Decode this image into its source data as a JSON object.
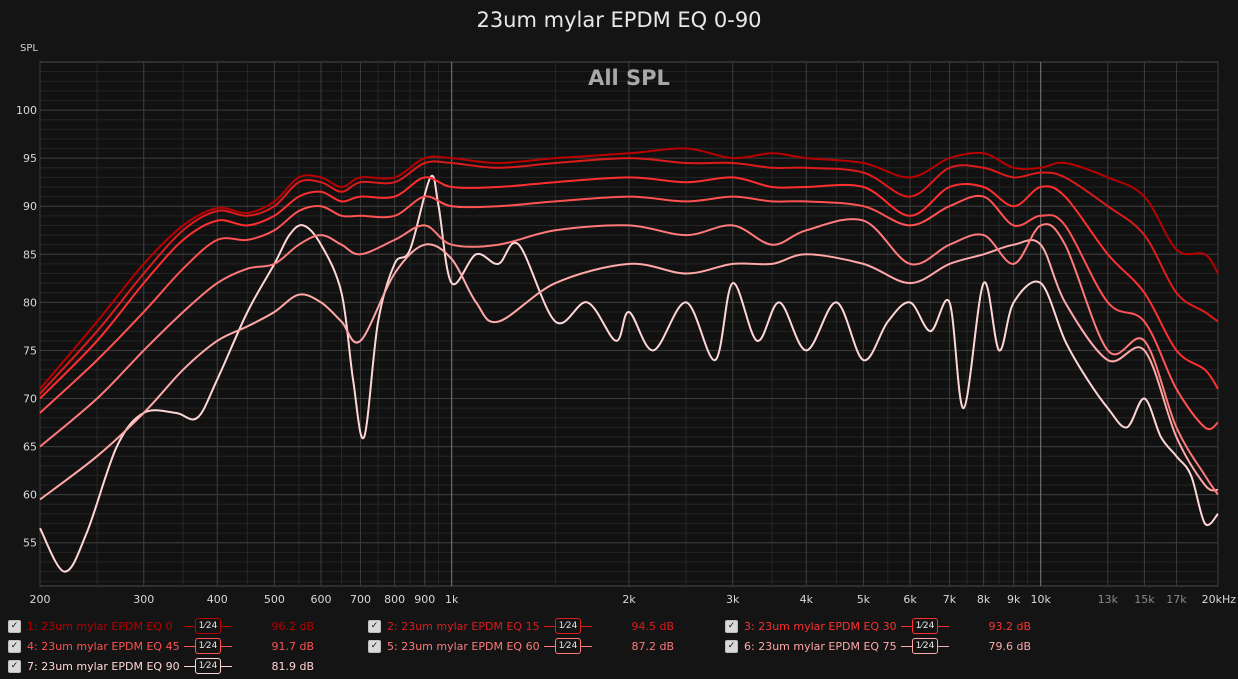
{
  "title": "23um mylar EPDM EQ 0-90",
  "chart_data": {
    "type": "line",
    "title": "All SPL",
    "ylabel": "SPL",
    "xscale": "log",
    "xlim": [
      200,
      20000
    ],
    "ylim": [
      50.5,
      105
    ],
    "yticks": [
      55,
      60,
      65,
      70,
      75,
      80,
      85,
      90,
      95,
      100
    ],
    "xticks": [
      {
        "f": 200,
        "label": "200"
      },
      {
        "f": 300,
        "label": "300"
      },
      {
        "f": 400,
        "label": "400"
      },
      {
        "f": 500,
        "label": "500"
      },
      {
        "f": 600,
        "label": "600"
      },
      {
        "f": 700,
        "label": "700"
      },
      {
        "f": 800,
        "label": "800"
      },
      {
        "f": 900,
        "label": "900"
      },
      {
        "f": 1000,
        "label": "1k"
      },
      {
        "f": 2000,
        "label": "2k"
      },
      {
        "f": 3000,
        "label": "3k"
      },
      {
        "f": 4000,
        "label": "4k"
      },
      {
        "f": 5000,
        "label": "5k"
      },
      {
        "f": 6000,
        "label": "6k"
      },
      {
        "f": 7000,
        "label": "7k"
      },
      {
        "f": 8000,
        "label": "8k"
      },
      {
        "f": 9000,
        "label": "9k"
      },
      {
        "f": 10000,
        "label": "10k"
      },
      {
        "f": 13000,
        "label": "13k"
      },
      {
        "f": 15000,
        "label": "15k"
      },
      {
        "f": 17000,
        "label": "17k"
      },
      {
        "f": 20000,
        "label": "20kHz"
      }
    ],
    "series": [
      {
        "name": "1: 23um mylar EPDM EQ 0",
        "value_label": "96.2 dB",
        "color": "#b80000",
        "points": [
          [
            200,
            71
          ],
          [
            250,
            78
          ],
          [
            300,
            84
          ],
          [
            350,
            88
          ],
          [
            400,
            89.8
          ],
          [
            450,
            89.3
          ],
          [
            500,
            90.5
          ],
          [
            550,
            93
          ],
          [
            600,
            93
          ],
          [
            650,
            92
          ],
          [
            700,
            93
          ],
          [
            800,
            93
          ],
          [
            900,
            95
          ],
          [
            1000,
            95
          ],
          [
            1200,
            94.5
          ],
          [
            1500,
            95
          ],
          [
            2000,
            95.5
          ],
          [
            2500,
            96
          ],
          [
            3000,
            95
          ],
          [
            3500,
            95.5
          ],
          [
            4000,
            95
          ],
          [
            5000,
            94.5
          ],
          [
            6000,
            93
          ],
          [
            7000,
            95
          ],
          [
            8000,
            95.5
          ],
          [
            9000,
            94
          ],
          [
            10000,
            94
          ],
          [
            11000,
            94.5
          ],
          [
            13000,
            93
          ],
          [
            15000,
            91
          ],
          [
            17000,
            85.5
          ],
          [
            19000,
            85
          ],
          [
            20000,
            83
          ]
        ]
      },
      {
        "name": "2: 23um mylar EPDM EQ 15",
        "value_label": "94.5 dB",
        "color": "#dc1c1c",
        "points": [
          [
            200,
            70.5
          ],
          [
            250,
            77
          ],
          [
            300,
            83
          ],
          [
            350,
            87.5
          ],
          [
            400,
            89.5
          ],
          [
            450,
            89
          ],
          [
            500,
            90
          ],
          [
            550,
            92.5
          ],
          [
            600,
            92.5
          ],
          [
            650,
            91.5
          ],
          [
            700,
            92.5
          ],
          [
            800,
            92.5
          ],
          [
            900,
            94.5
          ],
          [
            1000,
            94.5
          ],
          [
            1200,
            94
          ],
          [
            1500,
            94.5
          ],
          [
            2000,
            95
          ],
          [
            2500,
            94.5
          ],
          [
            3000,
            94.5
          ],
          [
            3500,
            94
          ],
          [
            4000,
            94
          ],
          [
            5000,
            93.5
          ],
          [
            6000,
            91
          ],
          [
            7000,
            94
          ],
          [
            8000,
            94
          ],
          [
            9000,
            93
          ],
          [
            10000,
            93.5
          ],
          [
            11000,
            93
          ],
          [
            13000,
            90
          ],
          [
            15000,
            87
          ],
          [
            17000,
            81
          ],
          [
            19000,
            79
          ],
          [
            20000,
            78
          ]
        ]
      },
      {
        "name": "3: 23um mylar EPDM EQ 30",
        "value_label": "93.2 dB",
        "color": "#ff2f2f",
        "points": [
          [
            200,
            70
          ],
          [
            250,
            76
          ],
          [
            300,
            82
          ],
          [
            350,
            86.5
          ],
          [
            400,
            88.5
          ],
          [
            450,
            88
          ],
          [
            500,
            89
          ],
          [
            550,
            91
          ],
          [
            600,
            91.5
          ],
          [
            650,
            90.5
          ],
          [
            700,
            91
          ],
          [
            800,
            91
          ],
          [
            900,
            93
          ],
          [
            1000,
            92
          ],
          [
            1200,
            92
          ],
          [
            1500,
            92.5
          ],
          [
            2000,
            93
          ],
          [
            2500,
            92.5
          ],
          [
            3000,
            93
          ],
          [
            3500,
            92
          ],
          [
            4000,
            92
          ],
          [
            5000,
            92
          ],
          [
            6000,
            89
          ],
          [
            7000,
            92
          ],
          [
            8000,
            92
          ],
          [
            9000,
            90
          ],
          [
            10000,
            92
          ],
          [
            11000,
            91
          ],
          [
            13000,
            85
          ],
          [
            15000,
            81
          ],
          [
            17000,
            75
          ],
          [
            19000,
            73
          ],
          [
            20000,
            71
          ]
        ]
      },
      {
        "name": "4: 23um mylar EPDM EQ 45",
        "value_label": "91.7 dB",
        "color": "#ff5252",
        "points": [
          [
            200,
            68.5
          ],
          [
            250,
            74
          ],
          [
            300,
            79
          ],
          [
            350,
            83.5
          ],
          [
            400,
            86.5
          ],
          [
            450,
            86.5
          ],
          [
            500,
            87.5
          ],
          [
            550,
            89.5
          ],
          [
            600,
            90
          ],
          [
            650,
            89
          ],
          [
            700,
            89
          ],
          [
            800,
            89
          ],
          [
            900,
            91
          ],
          [
            1000,
            90
          ],
          [
            1200,
            90
          ],
          [
            1500,
            90.5
          ],
          [
            2000,
            91
          ],
          [
            2500,
            90.5
          ],
          [
            3000,
            91
          ],
          [
            3500,
            90.5
          ],
          [
            4000,
            90.5
          ],
          [
            5000,
            90
          ],
          [
            6000,
            88
          ],
          [
            7000,
            90
          ],
          [
            8000,
            91
          ],
          [
            9000,
            88
          ],
          [
            10000,
            89
          ],
          [
            11000,
            88
          ],
          [
            13000,
            80
          ],
          [
            15000,
            78
          ],
          [
            17000,
            71
          ],
          [
            19000,
            67
          ],
          [
            20000,
            67.5
          ]
        ]
      },
      {
        "name": "5: 23um mylar EPDM EQ 60",
        "value_label": "87.2 dB",
        "color": "#ff7a7a",
        "points": [
          [
            200,
            65
          ],
          [
            250,
            70
          ],
          [
            300,
            75
          ],
          [
            350,
            79
          ],
          [
            400,
            82
          ],
          [
            450,
            83.5
          ],
          [
            500,
            84
          ],
          [
            550,
            86
          ],
          [
            600,
            87
          ],
          [
            650,
            86
          ],
          [
            700,
            85
          ],
          [
            800,
            86.5
          ],
          [
            900,
            88
          ],
          [
            1000,
            86
          ],
          [
            1200,
            86
          ],
          [
            1500,
            87.5
          ],
          [
            2000,
            88
          ],
          [
            2500,
            87
          ],
          [
            3000,
            88
          ],
          [
            3500,
            86
          ],
          [
            4000,
            87.5
          ],
          [
            5000,
            88.5
          ],
          [
            6000,
            84
          ],
          [
            7000,
            86
          ],
          [
            8000,
            87
          ],
          [
            9000,
            84
          ],
          [
            10000,
            88
          ],
          [
            11000,
            86
          ],
          [
            13000,
            75
          ],
          [
            15000,
            76
          ],
          [
            17000,
            67
          ],
          [
            19000,
            62
          ],
          [
            20000,
            60
          ]
        ]
      },
      {
        "name": "6: 23um mylar EPDM EQ 75",
        "value_label": "79.6 dB",
        "color": "#ffa8a8",
        "points": [
          [
            200,
            59.5
          ],
          [
            250,
            64
          ],
          [
            300,
            68.5
          ],
          [
            350,
            73
          ],
          [
            400,
            76
          ],
          [
            450,
            77.5
          ],
          [
            500,
            79
          ],
          [
            550,
            80.8
          ],
          [
            600,
            80
          ],
          [
            650,
            78
          ],
          [
            700,
            76
          ],
          [
            800,
            83
          ],
          [
            900,
            86
          ],
          [
            1000,
            84.5
          ],
          [
            1100,
            80
          ],
          [
            1200,
            78
          ],
          [
            1500,
            82
          ],
          [
            2000,
            84
          ],
          [
            2500,
            83
          ],
          [
            3000,
            84
          ],
          [
            3500,
            84
          ],
          [
            4000,
            85
          ],
          [
            5000,
            84
          ],
          [
            6000,
            82
          ],
          [
            7000,
            84
          ],
          [
            8000,
            85
          ],
          [
            9000,
            86
          ],
          [
            10000,
            86
          ],
          [
            11000,
            80
          ],
          [
            13000,
            74
          ],
          [
            15000,
            75
          ],
          [
            17000,
            66
          ],
          [
            19000,
            61
          ],
          [
            20000,
            60.5
          ]
        ]
      },
      {
        "name": "7: 23um mylar EPDM EQ 90",
        "value_label": "81.9 dB",
        "color": "#ffd6d6",
        "points": [
          [
            200,
            56.5
          ],
          [
            220,
            52
          ],
          [
            240,
            56
          ],
          [
            270,
            65
          ],
          [
            300,
            68.5
          ],
          [
            340,
            68.5
          ],
          [
            370,
            68
          ],
          [
            400,
            72
          ],
          [
            450,
            79
          ],
          [
            500,
            84
          ],
          [
            530,
            87
          ],
          [
            560,
            88
          ],
          [
            600,
            86
          ],
          [
            650,
            81
          ],
          [
            680,
            72
          ],
          [
            710,
            66
          ],
          [
            750,
            78
          ],
          [
            800,
            84
          ],
          [
            850,
            85.5
          ],
          [
            920,
            93
          ],
          [
            950,
            90
          ],
          [
            1000,
            82
          ],
          [
            1100,
            85
          ],
          [
            1200,
            84
          ],
          [
            1300,
            86
          ],
          [
            1500,
            78
          ],
          [
            1700,
            80
          ],
          [
            1900,
            76
          ],
          [
            2000,
            79
          ],
          [
            2200,
            75
          ],
          [
            2500,
            80
          ],
          [
            2800,
            74
          ],
          [
            3000,
            82
          ],
          [
            3300,
            76
          ],
          [
            3600,
            80
          ],
          [
            4000,
            75
          ],
          [
            4500,
            80
          ],
          [
            5000,
            74
          ],
          [
            5500,
            78
          ],
          [
            6000,
            80
          ],
          [
            6500,
            77
          ],
          [
            7000,
            80
          ],
          [
            7400,
            69
          ],
          [
            8000,
            82
          ],
          [
            8500,
            75
          ],
          [
            9000,
            80
          ],
          [
            10000,
            82
          ],
          [
            11000,
            76
          ],
          [
            12000,
            72
          ],
          [
            13000,
            69
          ],
          [
            14000,
            67
          ],
          [
            15000,
            70
          ],
          [
            16000,
            66
          ],
          [
            17000,
            64
          ],
          [
            18000,
            62
          ],
          [
            19000,
            57
          ],
          [
            20000,
            58
          ]
        ]
      }
    ]
  }
}
